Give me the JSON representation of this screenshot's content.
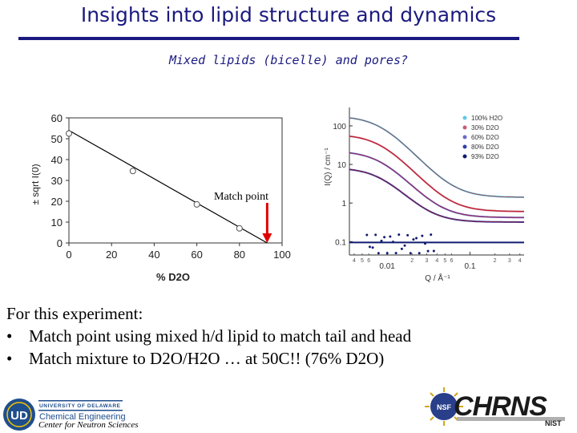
{
  "slide": {
    "title": "Insights into lipid structure and dynamics",
    "subtitle": "Mixed lipids (bicelle) and pores?",
    "intro": "For this experiment:",
    "bullets": [
      "Match point using mixed h/d lipid to match tail and head",
      "Match mixture to D2O/H2O  … at 50C!! (76% D2O)"
    ],
    "bullet_glyph": "•"
  },
  "logos": {
    "ud_line1": "UNIVERSITY OF DELAWARE",
    "ud_line2": "Chemical Engineering",
    "ud_monogram": "UD",
    "cns_label": "Center for Neutron Sciences",
    "chrns_text": "CHRNS",
    "nist_text": "NIST"
  },
  "chart_data": [
    {
      "type": "scatter",
      "xlabel": "% D2O",
      "ylabel": "± sqrt I(0)",
      "xlim": [
        0,
        100
      ],
      "ylim": [
        0,
        60
      ],
      "xticks": [
        "0",
        "20",
        "40",
        "60",
        "80",
        "100"
      ],
      "yticks": [
        "0",
        "10",
        "20",
        "30",
        "40",
        "50",
        "60"
      ],
      "points": [
        {
          "x": 0,
          "y": 52.5
        },
        {
          "x": 30,
          "y": 34.5
        },
        {
          "x": 60,
          "y": 18.5
        },
        {
          "x": 80,
          "y": 7
        }
      ],
      "fit_line": {
        "x": [
          0,
          93
        ],
        "y": [
          54,
          0
        ]
      },
      "annotation": "Match point",
      "arrow_color": "#e00000",
      "marker_color": "#555555"
    },
    {
      "type": "line",
      "xlabel": "Q / Å⁻¹",
      "ylabel": "I(Q) / cm⁻¹",
      "x_scale": "log",
      "y_scale": "log",
      "xticks": [
        "0.01",
        "0.1"
      ],
      "x_minor_ticks": [
        "4",
        "5",
        "6",
        "2",
        "3",
        "4",
        "5",
        "6",
        "2",
        "3",
        "4"
      ],
      "yticks": [
        "0.1",
        "1",
        "10",
        "100"
      ],
      "series": [
        {
          "name": "100% H2O",
          "color": "#5ec8e8"
        },
        {
          "name": "30% D2O",
          "color": "#c85a78"
        },
        {
          "name": "60% D2O",
          "color": "#6a6ad0"
        },
        {
          "name": "80% D2O",
          "color": "#3040a8"
        },
        {
          "name": "93% D2O",
          "color": "#101c70"
        }
      ],
      "legend": "top-right"
    }
  ]
}
